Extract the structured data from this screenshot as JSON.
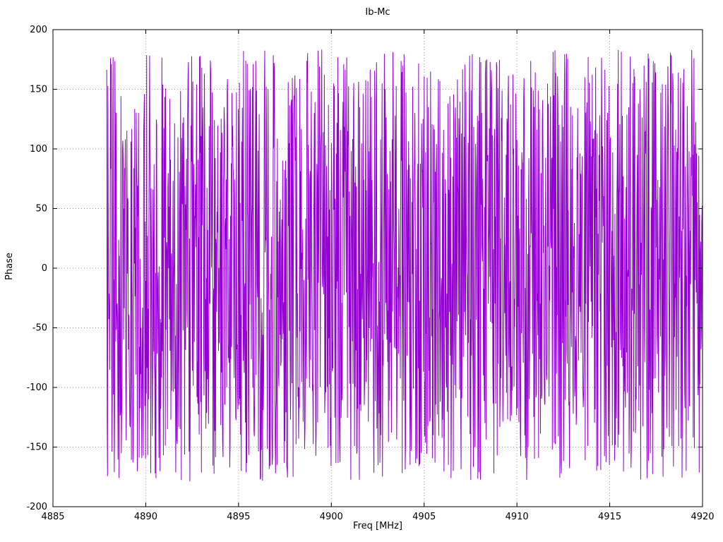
{
  "chart_data": {
    "type": "line",
    "title": "Ib-Mc",
    "xlabel": "Freq [MHz]",
    "ylabel": "Phase",
    "xlim": [
      4885,
      4920
    ],
    "ylim": [
      -200,
      200
    ],
    "xticks": [
      4885,
      4890,
      4895,
      4900,
      4905,
      4910,
      4915,
      4920
    ],
    "yticks": [
      -200,
      -150,
      -100,
      -50,
      0,
      50,
      100,
      150,
      200
    ],
    "grid": true,
    "grid_style": "dotted",
    "grid_color": "#9a9a9a",
    "border_color": "#000000",
    "legend": "none",
    "series": [
      {
        "name": "phase",
        "color": "#9400d3",
        "style": "line",
        "line_width": 1,
        "x_start": 4887.9,
        "x_end": 4920.0,
        "n_points": 1600,
        "y_min": -180,
        "y_max": 184,
        "seed": 987654321,
        "description": "wrapped phase noise, uniformly distributed between y_min and y_max across x range"
      }
    ]
  }
}
